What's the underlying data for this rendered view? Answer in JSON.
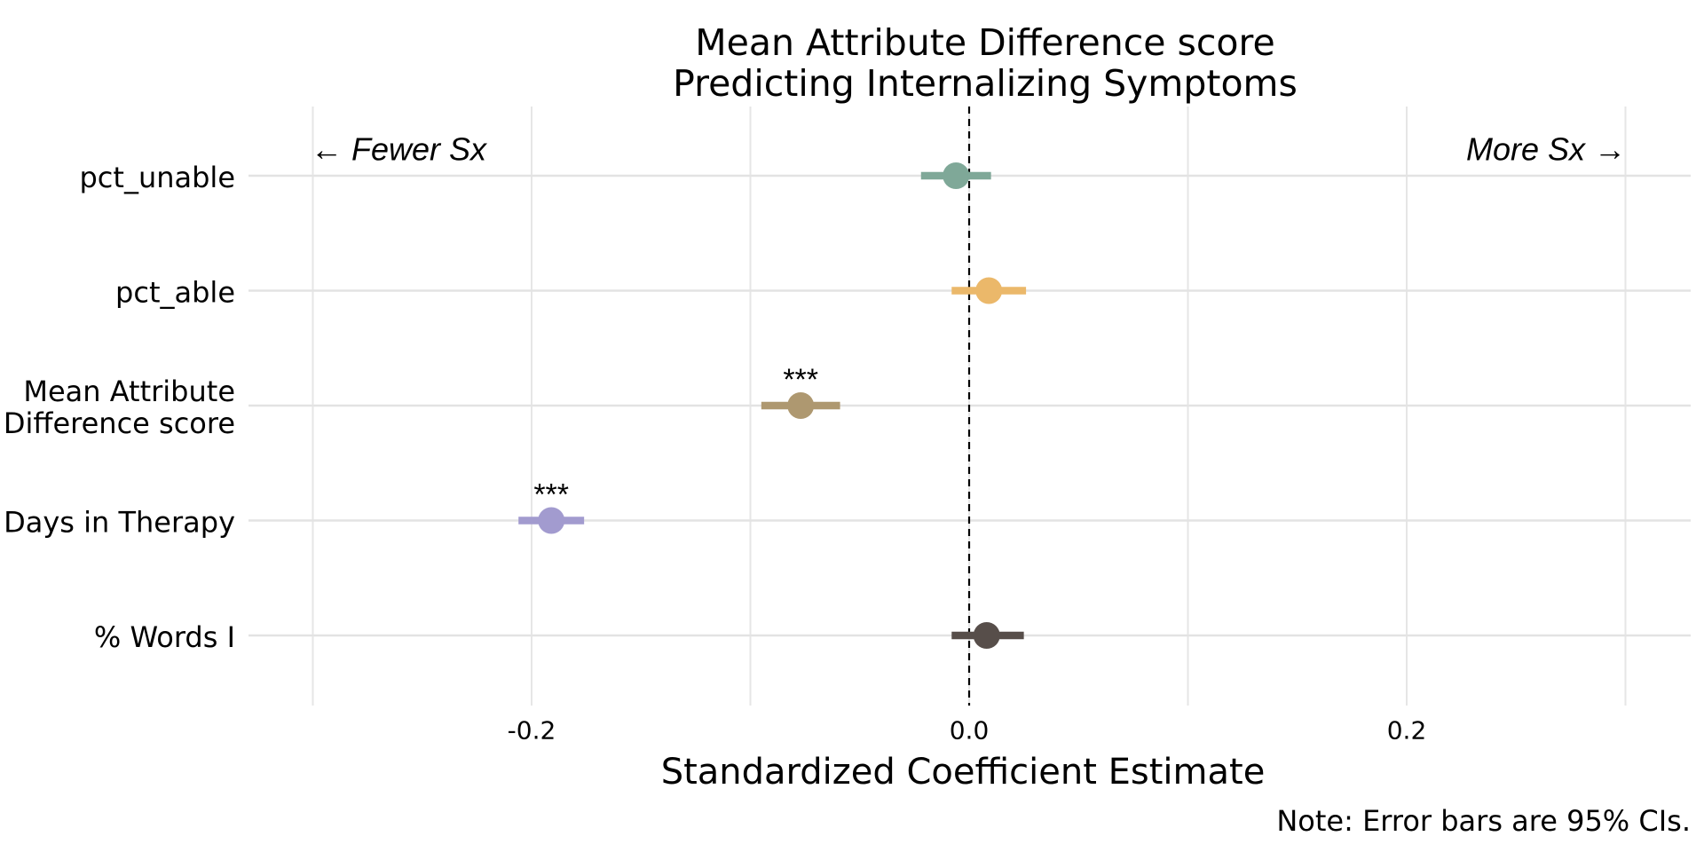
{
  "chart_data": {
    "type": "scatter",
    "subtype": "coefficient-plot",
    "title_lines": [
      "Mean Attribute Difference score",
      "Predicting Internalizing Symptoms"
    ],
    "xlabel": "Standardized Coefficient Estimate",
    "ylabel": "",
    "xlim": [
      -0.32,
      0.32
    ],
    "x_ticks": [
      {
        "value": -0.2,
        "label": "-0.2"
      },
      {
        "value": 0.0,
        "label": "0.0"
      },
      {
        "value": 0.2,
        "label": "0.2"
      }
    ],
    "minor_gridlines": [
      -0.3,
      -0.1,
      0.1,
      0.3
    ],
    "reference_line": 0.0,
    "annotations": {
      "left": "← Fewer Sx",
      "right": "More Sx →"
    },
    "note": "Note: Error bars are 95% CIs.",
    "grid": true,
    "rows": [
      {
        "name_lines": [
          "pct_unable"
        ],
        "estimate": -0.006,
        "ci_low": -0.022,
        "ci_high": 0.01,
        "color": "#7FA898",
        "sig": ""
      },
      {
        "name_lines": [
          "pct_able"
        ],
        "estimate": 0.009,
        "ci_low": -0.008,
        "ci_high": 0.026,
        "color": "#EBB86A",
        "sig": ""
      },
      {
        "name_lines": [
          "Mean Attribute",
          "Difference score"
        ],
        "estimate": -0.077,
        "ci_low": -0.095,
        "ci_high": -0.059,
        "color": "#AE9870",
        "sig": "***"
      },
      {
        "name_lines": [
          "Days in Therapy"
        ],
        "estimate": -0.191,
        "ci_low": -0.206,
        "ci_high": -0.176,
        "color": "#A29BCF",
        "sig": "***"
      },
      {
        "name_lines": [
          "% Words I"
        ],
        "estimate": 0.008,
        "ci_low": -0.008,
        "ci_high": 0.025,
        "color": "#574E4A",
        "sig": ""
      }
    ]
  }
}
